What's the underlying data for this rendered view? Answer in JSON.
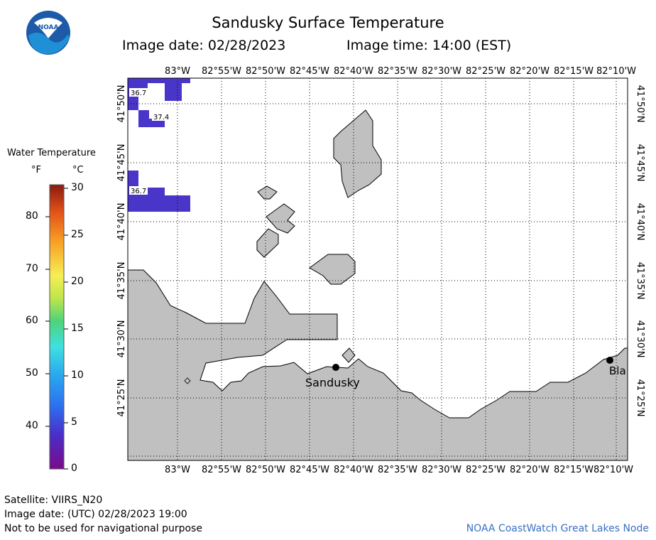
{
  "header": {
    "title": "Sandusky Surface Temperature",
    "image_date": "Image date: 02/28/2023",
    "image_time": "Image time: 14:00 (EST)"
  },
  "logo": {
    "text": "NOAA",
    "icon": "noaa-logo-icon"
  },
  "map": {
    "top_lon_labels": [
      "83°W",
      "82°55'W",
      "82°50'W",
      "82°45'W",
      "82°40'W",
      "82°35'W",
      "82°30'W",
      "82°25'W",
      "82°20'W",
      "82°15'W",
      "82°10'W"
    ],
    "bottom_lon_labels": [
      "83°W",
      "82°55'W",
      "82°50'W",
      "82°45'W",
      "82°40'W",
      "82°35'W",
      "82°30'W",
      "82°25'W",
      "82°20'W",
      "82°15'W",
      "82°10'W"
    ],
    "left_lat_labels": [
      "41°50'N",
      "41°45'N",
      "41°40'N",
      "41°35'N",
      "41°30'N",
      "41°25'N"
    ],
    "right_lat_labels": [
      "41°50'N",
      "41°45'N",
      "41°40'N",
      "41°35'N",
      "41°30'N",
      "41°25'N"
    ],
    "cities": [
      {
        "name": "Sandusky"
      },
      {
        "name": "Bla"
      }
    ],
    "temperature_labels": [
      "36.7",
      "37.4",
      "36.7"
    ],
    "colors": {
      "land": "#c0c0c0",
      "water": "#ffffff",
      "cold_water": "#4a35c9",
      "grid": "#000000"
    }
  },
  "legend": {
    "title": "Water Temperature",
    "unit_f": "°F",
    "unit_c": "°C",
    "f_ticks": [
      "80",
      "70",
      "60",
      "50",
      "40"
    ],
    "c_ticks": [
      "30",
      "25",
      "20",
      "15",
      "10",
      "5",
      "0"
    ]
  },
  "footer": {
    "satellite": "Satellite: VIIRS_N20",
    "utc_date": "Image date: (UTC) 02/28/2023  19:00",
    "disclaimer": "Not to be used for navigational purpose",
    "credit": "NOAA CoastWatch Great Lakes Node"
  }
}
